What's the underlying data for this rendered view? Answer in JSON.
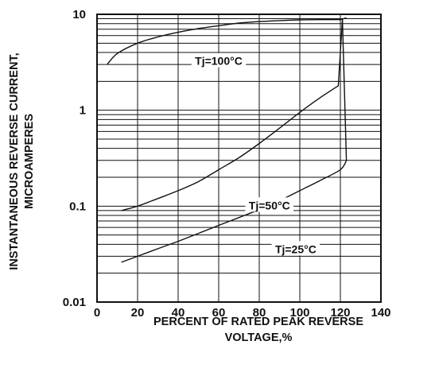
{
  "chart_data": {
    "type": "line",
    "title": "",
    "xlabel_lines": [
      "PERCENT OF RATED PEAK REVERSE",
      "VOLTAGE,%"
    ],
    "ylabel_lines": [
      "INSTANTANEOUS REVERSE CURRENT,",
      "MICROAMPERES"
    ],
    "x_ticks": [
      "0",
      "20",
      "40",
      "60",
      "80",
      "100",
      "120",
      "140"
    ],
    "y_ticks": [
      "10",
      "1",
      "0.1",
      "0.01"
    ],
    "xlim": [
      0,
      140
    ],
    "ylim": [
      0.01,
      10
    ],
    "y_scale": "log",
    "grid": true,
    "series": [
      {
        "name": "Tj=100°C",
        "x": [
          5,
          10,
          20,
          30,
          40,
          50,
          60,
          70,
          80,
          90,
          100,
          110,
          120,
          123
        ],
        "y": [
          3.0,
          3.9,
          5.0,
          5.8,
          6.5,
          7.1,
          7.6,
          8.1,
          8.4,
          8.6,
          8.75,
          8.8,
          8.8,
          9.2
        ]
      },
      {
        "name": "Tj=50°C",
        "x": [
          12,
          20,
          30,
          40,
          50,
          60,
          70,
          80,
          90,
          100,
          110,
          119,
          121
        ],
        "y": [
          0.09,
          0.1,
          0.12,
          0.145,
          0.18,
          0.24,
          0.32,
          0.45,
          0.65,
          0.95,
          1.35,
          1.8,
          9.0
        ]
      },
      {
        "name": "Tj=25°C",
        "x": [
          12,
          20,
          30,
          40,
          50,
          60,
          70,
          80,
          90,
          100,
          110,
          120,
          123,
          121
        ],
        "y": [
          0.026,
          0.03,
          0.036,
          0.043,
          0.052,
          0.063,
          0.076,
          0.092,
          0.114,
          0.145,
          0.185,
          0.24,
          0.3,
          8.8
        ]
      }
    ]
  }
}
